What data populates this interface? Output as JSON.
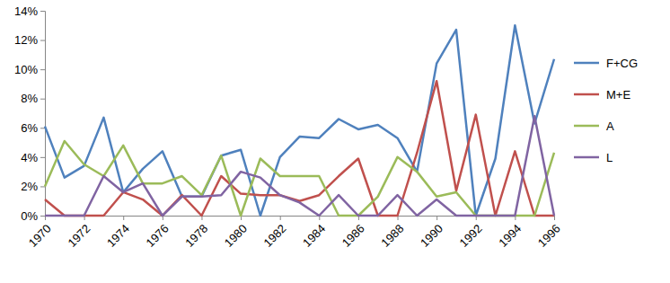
{
  "chart_data": {
    "type": "line",
    "x": [
      1970,
      1971,
      1972,
      1973,
      1974,
      1975,
      1976,
      1977,
      1978,
      1979,
      1980,
      1981,
      1982,
      1983,
      1984,
      1985,
      1986,
      1987,
      1988,
      1989,
      1990,
      1991,
      1992,
      1993,
      1994,
      1995,
      1996
    ],
    "xlim": [
      1970,
      1996
    ],
    "xticks": [
      1970,
      1972,
      1974,
      1976,
      1978,
      1980,
      1982,
      1984,
      1986,
      1988,
      1990,
      1992,
      1994,
      1996
    ],
    "ylim": [
      0,
      14
    ],
    "yticks": [
      {
        "value": 0,
        "label": "0%"
      },
      {
        "value": 2,
        "label": "2%"
      },
      {
        "value": 4,
        "label": "4%"
      },
      {
        "value": 6,
        "label": "6%"
      },
      {
        "value": 8,
        "label": "8%"
      },
      {
        "value": 10,
        "label": "10%"
      },
      {
        "value": 12,
        "label": "12%"
      },
      {
        "value": 14,
        "label": "14%"
      }
    ],
    "grid": false,
    "legend": "right",
    "series": [
      {
        "name": "F+CG",
        "color": "#4f81bd",
        "values": [
          6.1,
          2.6,
          3.4,
          6.7,
          1.6,
          3.2,
          4.4,
          1.3,
          1.3,
          4.1,
          4.5,
          0,
          4.0,
          5.4,
          5.3,
          6.6,
          5.9,
          6.2,
          5.3,
          3.0,
          10.4,
          12.7,
          0,
          3.9,
          13.0,
          6.3,
          10.7
        ]
      },
      {
        "name": "M+E",
        "color": "#c0504d",
        "values": [
          1.1,
          0,
          0,
          0,
          1.6,
          1.1,
          0,
          1.4,
          0,
          2.7,
          1.5,
          1.4,
          1.4,
          1.0,
          1.4,
          2.7,
          3.9,
          0,
          0,
          4.3,
          9.2,
          1.7,
          6.9,
          0,
          4.4,
          0,
          0
        ]
      },
      {
        "name": "A",
        "color": "#9bbb59",
        "values": [
          2.0,
          5.1,
          3.5,
          2.7,
          4.8,
          2.2,
          2.2,
          2.7,
          1.4,
          4.1,
          0,
          3.9,
          2.7,
          2.7,
          2.7,
          0,
          0,
          1.3,
          4.0,
          3.0,
          1.3,
          1.6,
          0,
          0,
          0,
          0,
          4.3
        ]
      },
      {
        "name": "L",
        "color": "#8064a2",
        "values": [
          0,
          0,
          0,
          2.7,
          1.6,
          2.2,
          0,
          1.3,
          1.3,
          1.4,
          3.0,
          2.6,
          1.4,
          0.9,
          0,
          1.4,
          0,
          0,
          1.4,
          0,
          1.1,
          0,
          0,
          0,
          0,
          6.8,
          0
        ]
      }
    ]
  }
}
